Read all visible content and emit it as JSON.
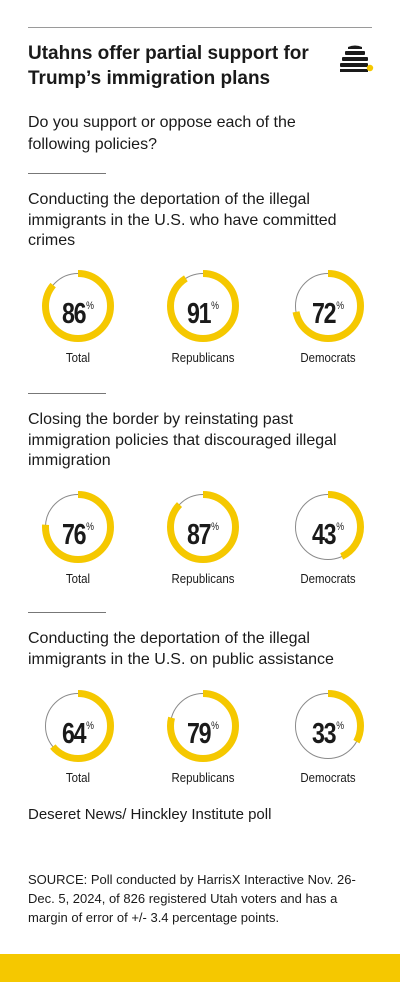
{
  "title": "Utahns offer partial support for Trump’s immigration plans",
  "question": "Do you support or oppose each of the following policies?",
  "colors": {
    "accent": "#f5c800",
    "track": "#8a8a8a",
    "text": "#1a1a1a"
  },
  "logo": {
    "icon": "beehive-icon"
  },
  "chart_data": [
    {
      "type": "donut",
      "title": "Conducting the deportation of the illegal immigrants in the U.S. who have committed crimes",
      "categories": [
        "Total",
        "Republicans",
        "Democrats"
      ],
      "values": [
        86,
        91,
        72
      ],
      "unit": "%"
    },
    {
      "type": "donut",
      "title": "Closing the border by reinstating past immigration policies that discouraged illegal immigration",
      "categories": [
        "Total",
        "Republicans",
        "Democrats"
      ],
      "values": [
        76,
        87,
        43
      ],
      "unit": "%"
    },
    {
      "type": "donut",
      "title": "Conducting the deportation of the illegal immigrants in the U.S. on public assistance",
      "categories": [
        "Total",
        "Republicans",
        "Democrats"
      ],
      "values": [
        64,
        79,
        33
      ],
      "unit": "%"
    }
  ],
  "source": {
    "name": "Deseret News/ Hinckley Institute poll",
    "note": "SOURCE: Poll conducted by HarrisX Interactive Nov. 26-Dec. 5, 2024, of 826 registered Utah voters and has a margin of error of +/- 3.4 percentage points."
  }
}
